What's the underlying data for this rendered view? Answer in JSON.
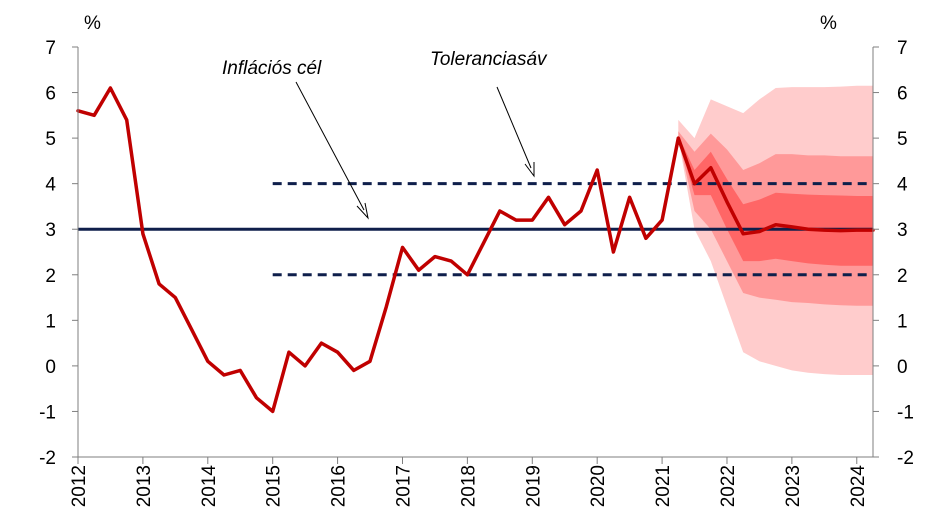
{
  "chart_data": {
    "type": "line",
    "y_unit_left": "%",
    "y_unit_right": "%",
    "ylim": [
      -2,
      7
    ],
    "y_ticks": [
      -2,
      -1,
      0,
      1,
      2,
      3,
      4,
      5,
      6,
      7
    ],
    "xlim": [
      2012,
      2024.25
    ],
    "x_ticks": [
      2012,
      2013,
      2014,
      2015,
      2016,
      2017,
      2018,
      2019,
      2020,
      2021,
      2022,
      2023,
      2024
    ],
    "grid": false,
    "inflation_target": {
      "label": "Inflációs cél",
      "value": 3,
      "x_start": 2012,
      "x_end": 2024.25,
      "color": "#0f1f4b"
    },
    "tolerance_band": {
      "label": "Toleranciasáv",
      "lower": 2,
      "upper": 4,
      "x_start": 2015,
      "x_end": 2024.25,
      "color": "#0f1f4b"
    },
    "series": [
      {
        "color": "#c00000",
        "x": [
          2012,
          2012.25,
          2012.5,
          2012.75,
          2013,
          2013.25,
          2013.5,
          2013.75,
          2014,
          2014.25,
          2014.5,
          2014.75,
          2015,
          2015.25,
          2015.5,
          2015.75,
          2016,
          2016.25,
          2016.5,
          2016.75,
          2017,
          2017.25,
          2017.5,
          2017.75,
          2018,
          2018.25,
          2018.5,
          2018.75,
          2019,
          2019.25,
          2019.5,
          2019.75,
          2020,
          2020.25,
          2020.5,
          2020.75,
          2021,
          2021.25,
          2021.5,
          2021.75,
          2022,
          2022.25,
          2022.5,
          2022.75,
          2023,
          2023.25,
          2023.5,
          2023.75,
          2024,
          2024.25
        ],
        "values": [
          5.6,
          5.5,
          6.1,
          5.4,
          2.9,
          1.8,
          1.5,
          0.8,
          0.1,
          -0.2,
          -0.1,
          -0.7,
          -1.0,
          0.3,
          0.0,
          0.5,
          0.3,
          -0.1,
          0.1,
          1.3,
          2.6,
          2.1,
          2.4,
          2.3,
          2.0,
          2.7,
          3.4,
          3.2,
          3.2,
          3.7,
          3.1,
          3.4,
          4.3,
          2.5,
          3.7,
          2.8,
          3.2,
          5.0,
          4.0,
          4.35,
          3.6,
          2.9,
          2.95,
          3.1,
          3.05,
          3.0,
          2.98,
          2.97,
          2.98,
          2.98
        ]
      }
    ],
    "fan_chart": {
      "x": [
        2021.25,
        2021.5,
        2021.75,
        2022,
        2022.25,
        2022.5,
        2022.75,
        2023,
        2023.25,
        2023.5,
        2023.75,
        2024,
        2024.25
      ],
      "median": [
        5.0,
        4.0,
        4.35,
        3.6,
        2.9,
        2.95,
        3.1,
        3.05,
        3.0,
        2.98,
        2.97,
        2.98,
        2.98
      ],
      "bands": [
        {
          "color": "#ffcccc",
          "lower": [
            5.0,
            3.0,
            2.3,
            1.3,
            0.3,
            0.1,
            0.0,
            -0.1,
            -0.15,
            -0.18,
            -0.2,
            -0.2,
            -0.2
          ],
          "upper": [
            5.4,
            5.0,
            5.85,
            5.7,
            5.55,
            5.85,
            6.1,
            6.12,
            6.12,
            6.12,
            6.13,
            6.15,
            6.15
          ]
        },
        {
          "color": "#ff9999",
          "lower": [
            5.0,
            3.4,
            3.0,
            2.3,
            1.6,
            1.5,
            1.45,
            1.4,
            1.38,
            1.35,
            1.33,
            1.32,
            1.32
          ],
          "upper": [
            5.15,
            4.7,
            5.1,
            4.75,
            4.3,
            4.45,
            4.65,
            4.65,
            4.62,
            4.62,
            4.6,
            4.6,
            4.6
          ]
        },
        {
          "color": "#ff6666",
          "lower": [
            5.0,
            3.75,
            3.75,
            3.0,
            2.3,
            2.3,
            2.35,
            2.3,
            2.25,
            2.22,
            2.2,
            2.2,
            2.2
          ],
          "upper": [
            5.05,
            4.3,
            4.7,
            4.1,
            3.55,
            3.65,
            3.8,
            3.78,
            3.76,
            3.75,
            3.74,
            3.73,
            3.73
          ]
        }
      ]
    }
  }
}
